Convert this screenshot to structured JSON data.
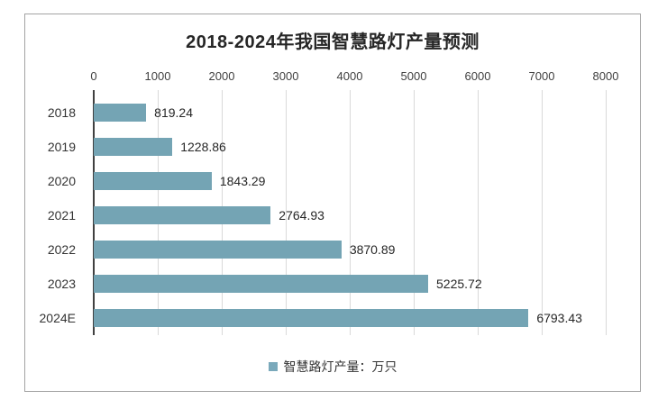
{
  "chart_data": {
    "type": "bar",
    "orientation": "horizontal",
    "title": "2018-2024年我国智慧路灯产量预测",
    "categories": [
      "2018",
      "2019",
      "2020",
      "2021",
      "2022",
      "2023",
      "2024E"
    ],
    "values": [
      819.24,
      1228.86,
      1843.29,
      2764.93,
      3870.89,
      5225.72,
      6793.43
    ],
    "value_labels": [
      "819.24",
      "1228.86",
      "1843.29",
      "2764.93",
      "3870.89",
      "5225.72",
      "6793.43"
    ],
    "xlabel": "",
    "ylabel": "",
    "xlim": [
      0,
      8000
    ],
    "x_ticks": [
      "0",
      "1000",
      "2000",
      "3000",
      "4000",
      "5000",
      "6000",
      "7000",
      "8000"
    ],
    "tick_axis_position": "top",
    "grid": true,
    "legend_position": "bottom",
    "legend_entries": [
      "智慧路灯产量：万只"
    ],
    "bar_color": "#74a4b4"
  },
  "legend": {
    "label": "智慧路灯产量：万只",
    "marker_color": "#7aa9bb"
  },
  "colors": {
    "bar": "#74a4b4",
    "gridline": "#d9d9d9",
    "axis_line": "#404040",
    "frame_border": "#a3a3a3",
    "title_text": "#262626",
    "tick_text": "#404040",
    "category_text": "#333333",
    "value_text": "#262626"
  }
}
